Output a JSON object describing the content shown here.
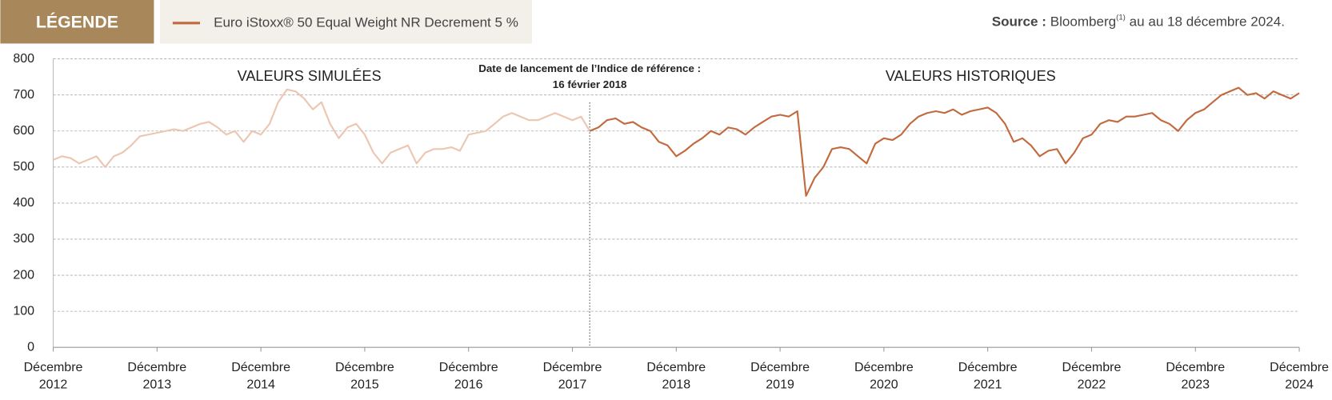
{
  "header": {
    "legend_title": "LÉGENDE",
    "source": {
      "label": "Source :",
      "text": "Bloomberg",
      "note": "(1)",
      "rest": "au au 18 décembre 2024."
    }
  },
  "chart_data": {
    "type": "line",
    "annotations": {
      "simulated": "VALEURS SIMULÉES",
      "historical": "VALEURS HISTORIQUES",
      "launch": [
        "Date de lancement de l’Indice de référence :",
        "16 février 2018"
      ],
      "launch_x": "2018-02"
    },
    "x": [
      "2012-12",
      "2013-01",
      "2013-02",
      "2013-03",
      "2013-04",
      "2013-05",
      "2013-06",
      "2013-07",
      "2013-08",
      "2013-09",
      "2013-10",
      "2013-11",
      "2013-12",
      "2014-01",
      "2014-02",
      "2014-03",
      "2014-04",
      "2014-05",
      "2014-06",
      "2014-07",
      "2014-08",
      "2014-09",
      "2014-10",
      "2014-11",
      "2014-12",
      "2015-01",
      "2015-02",
      "2015-03",
      "2015-04",
      "2015-05",
      "2015-06",
      "2015-07",
      "2015-08",
      "2015-09",
      "2015-10",
      "2015-11",
      "2015-12",
      "2016-01",
      "2016-02",
      "2016-03",
      "2016-04",
      "2016-05",
      "2016-06",
      "2016-07",
      "2016-08",
      "2016-09",
      "2016-10",
      "2016-11",
      "2016-12",
      "2017-01",
      "2017-02",
      "2017-03",
      "2017-04",
      "2017-05",
      "2017-06",
      "2017-07",
      "2017-08",
      "2017-09",
      "2017-10",
      "2017-11",
      "2017-12",
      "2018-01",
      "2018-02",
      "2018-03",
      "2018-04",
      "2018-05",
      "2018-06",
      "2018-07",
      "2018-08",
      "2018-09",
      "2018-10",
      "2018-11",
      "2018-12",
      "2019-01",
      "2019-02",
      "2019-03",
      "2019-04",
      "2019-05",
      "2019-06",
      "2019-07",
      "2019-08",
      "2019-09",
      "2019-10",
      "2019-11",
      "2019-12",
      "2020-01",
      "2020-02",
      "2020-03",
      "2020-04",
      "2020-05",
      "2020-06",
      "2020-07",
      "2020-08",
      "2020-09",
      "2020-10",
      "2020-11",
      "2020-12",
      "2021-01",
      "2021-02",
      "2021-03",
      "2021-04",
      "2021-05",
      "2021-06",
      "2021-07",
      "2021-08",
      "2021-09",
      "2021-10",
      "2021-11",
      "2021-12",
      "2022-01",
      "2022-02",
      "2022-03",
      "2022-04",
      "2022-05",
      "2022-06",
      "2022-07",
      "2022-08",
      "2022-09",
      "2022-10",
      "2022-11",
      "2022-12",
      "2023-01",
      "2023-02",
      "2023-03",
      "2023-04",
      "2023-05",
      "2023-06",
      "2023-07",
      "2023-08",
      "2023-09",
      "2023-10",
      "2023-11",
      "2023-12",
      "2024-01",
      "2024-02",
      "2024-03",
      "2024-04",
      "2024-05",
      "2024-06",
      "2024-07",
      "2024-08",
      "2024-09",
      "2024-10",
      "2024-11",
      "2024-12"
    ],
    "series": [
      {
        "name": "Euro iStoxx® 50 Equal Weight NR Decrement 5 %",
        "color": "#c2693e",
        "simulated_color": "#ecc6b1",
        "values": [
          520,
          530,
          525,
          510,
          520,
          530,
          500,
          530,
          540,
          560,
          585,
          590,
          595,
          600,
          605,
          600,
          610,
          620,
          625,
          610,
          590,
          600,
          570,
          600,
          590,
          620,
          680,
          715,
          710,
          690,
          660,
          680,
          620,
          580,
          610,
          620,
          590,
          540,
          510,
          540,
          550,
          560,
          510,
          540,
          550,
          550,
          555,
          545,
          590,
          595,
          600,
          620,
          640,
          650,
          640,
          630,
          630,
          640,
          650,
          640,
          630,
          640,
          600,
          610,
          630,
          635,
          620,
          625,
          610,
          600,
          570,
          560,
          530,
          545,
          565,
          580,
          600,
          590,
          610,
          605,
          590,
          610,
          625,
          640,
          645,
          640,
          655,
          420,
          470,
          500,
          550,
          555,
          550,
          530,
          510,
          565,
          580,
          575,
          590,
          620,
          640,
          650,
          655,
          650,
          660,
          645,
          655,
          660,
          665,
          650,
          620,
          570,
          580,
          560,
          530,
          545,
          550,
          510,
          540,
          580,
          590,
          620,
          630,
          625,
          640,
          640,
          645,
          650,
          630,
          620,
          600,
          630,
          650,
          660,
          680,
          700,
          710,
          720,
          700,
          705,
          690,
          710,
          700,
          690,
          705
        ]
      }
    ],
    "xlim": [
      "2012-12",
      "2024-12"
    ],
    "xticks": [
      {
        "value": "2012-12",
        "label": "Décembre 2012"
      },
      {
        "value": "2013-12",
        "label": "Décembre 2013"
      },
      {
        "value": "2014-12",
        "label": "Décembre 2014"
      },
      {
        "value": "2015-12",
        "label": "Décembre 2015"
      },
      {
        "value": "2016-12",
        "label": "Décembre 2016"
      },
      {
        "value": "2017-12",
        "label": "Décembre 2017"
      },
      {
        "value": "2018-12",
        "label": "Décembre 2018"
      },
      {
        "value": "2019-12",
        "label": "Décembre 2019"
      },
      {
        "value": "2020-12",
        "label": "Décembre 2020"
      },
      {
        "value": "2021-12",
        "label": "Décembre 2021"
      },
      {
        "value": "2022-12",
        "label": "Décembre 2022"
      },
      {
        "value": "2023-12",
        "label": "Décembre 2023"
      },
      {
        "value": "2024-12",
        "label": "Décembre 2024"
      }
    ],
    "ylim": [
      0,
      800
    ],
    "yticks": [
      0,
      100,
      200,
      300,
      400,
      500,
      600,
      700,
      800
    ],
    "grid": true
  }
}
